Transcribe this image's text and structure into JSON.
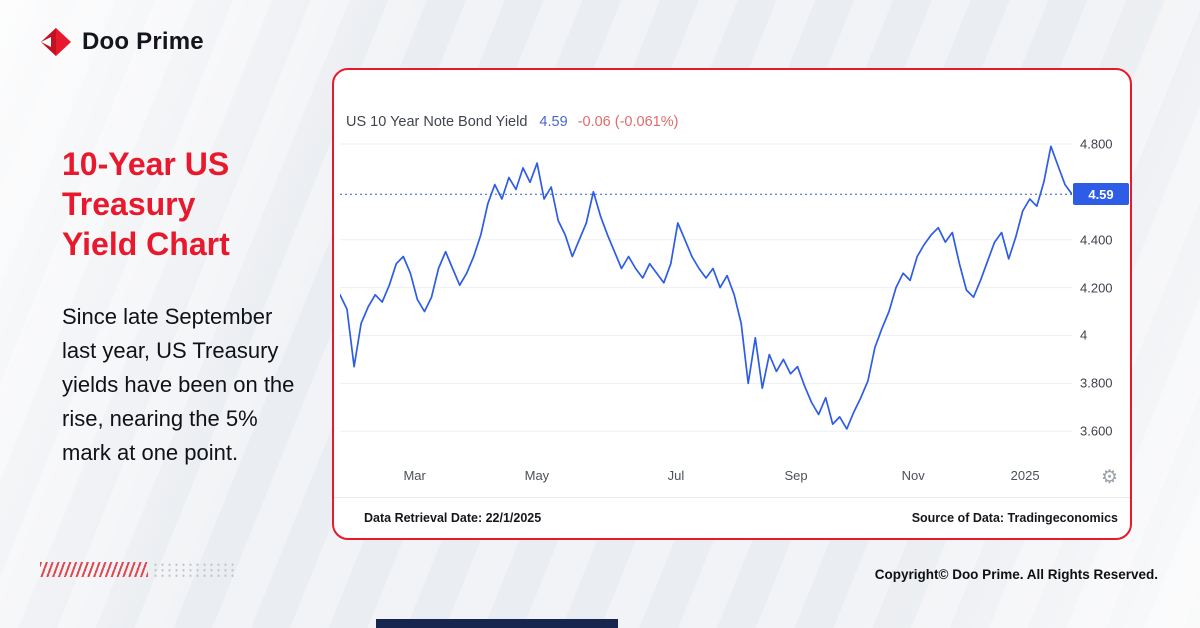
{
  "brand": {
    "name": "Doo Prime"
  },
  "headline": {
    "line1": "10-Year US",
    "line2": "Treasury",
    "line3": "Yield Chart"
  },
  "intro": {
    "text": "Since late September last year, US Treasury yields have been on the rise, nearing the 5% mark at one point."
  },
  "chart_card": {
    "footer_left": "Data Retrieval Date: 22/1/2025",
    "footer_right": "Source of Data: Tradingeconomics"
  },
  "chart_data": {
    "type": "line",
    "title": "US 10 Year Note Bond Yield",
    "value_label": "4.59",
    "change_label": "-0.06 (-0.061%)",
    "line_color": "#2d5ce6",
    "grid_color": "#edeff2",
    "current_marker": {
      "label": "4.59",
      "value": 4.59
    },
    "ylim": [
      3.48,
      4.9
    ],
    "yticks": [
      {
        "label": "4.800",
        "value": 4.8
      },
      {
        "label": "4.400",
        "value": 4.4
      },
      {
        "label": "4.200",
        "value": 4.2
      },
      {
        "label": "4",
        "value": 4.0
      },
      {
        "label": "3.800",
        "value": 3.8
      },
      {
        "label": "3.600",
        "value": 3.6
      }
    ],
    "xticks": [
      {
        "label": "Mar",
        "pos": 0.102
      },
      {
        "label": "May",
        "pos": 0.269
      },
      {
        "label": "Jul",
        "pos": 0.459
      },
      {
        "label": "Sep",
        "pos": 0.623
      },
      {
        "label": "Nov",
        "pos": 0.783
      },
      {
        "label": "2025",
        "pos": 0.936
      }
    ],
    "values": [
      4.17,
      4.11,
      3.87,
      4.05,
      4.12,
      4.17,
      4.14,
      4.21,
      4.3,
      4.33,
      4.26,
      4.15,
      4.1,
      4.16,
      4.28,
      4.35,
      4.28,
      4.21,
      4.26,
      4.33,
      4.42,
      4.55,
      4.63,
      4.57,
      4.66,
      4.61,
      4.7,
      4.64,
      4.72,
      4.57,
      4.62,
      4.48,
      4.42,
      4.33,
      4.4,
      4.47,
      4.6,
      4.5,
      4.42,
      4.35,
      4.28,
      4.33,
      4.28,
      4.24,
      4.3,
      4.26,
      4.22,
      4.3,
      4.47,
      4.4,
      4.33,
      4.28,
      4.24,
      4.28,
      4.2,
      4.25,
      4.17,
      4.05,
      3.8,
      3.99,
      3.78,
      3.92,
      3.85,
      3.9,
      3.84,
      3.87,
      3.79,
      3.72,
      3.67,
      3.74,
      3.63,
      3.66,
      3.61,
      3.68,
      3.74,
      3.81,
      3.95,
      4.03,
      4.1,
      4.2,
      4.26,
      4.23,
      4.33,
      4.38,
      4.42,
      4.45,
      4.39,
      4.43,
      4.3,
      4.19,
      4.16,
      4.23,
      4.31,
      4.39,
      4.43,
      4.32,
      4.41,
      4.52,
      4.57,
      4.54,
      4.64,
      4.79,
      4.71,
      4.63,
      4.59
    ]
  },
  "icons": {
    "gear": "⚙"
  },
  "copyright": {
    "text": "Copyright© Doo Prime. All Rights Reserved."
  }
}
